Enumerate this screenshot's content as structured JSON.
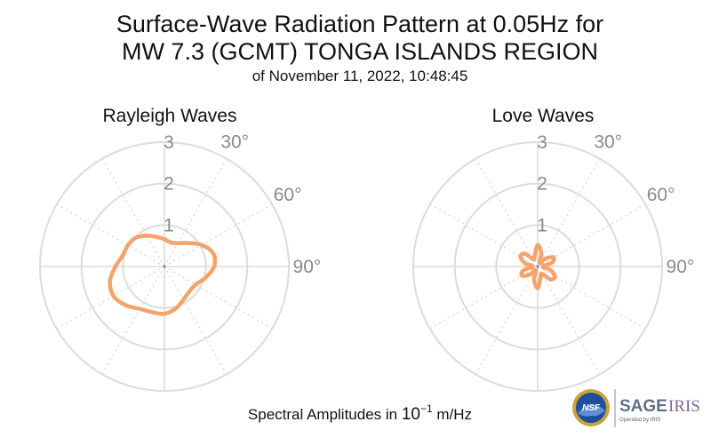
{
  "title_line1": "Surface-Wave Radiation Pattern at 0.05Hz for",
  "title_line2": "MW 7.3 (GCMT) TONGA ISLANDS REGION",
  "subtitle": "of November 11, 2022, 10:48:45",
  "footer_prefix": "Spectral Amplitudes in ",
  "footer_base": "10",
  "footer_exp": "−1",
  "footer_unit": " m/Hz",
  "logo": {
    "nsf": "NSF",
    "sage": "SAGE",
    "iris": "IRIS",
    "operated": "Operated by IRIS"
  },
  "colors": {
    "curve": "#f4a46b",
    "grid": "#dcdcdc",
    "label": "#8a8a8a"
  },
  "chart_data": [
    {
      "type": "polar-line",
      "title": "Rayleigh Waves",
      "r_ticks": [
        "1",
        "2",
        "3"
      ],
      "r_max": 3,
      "angle_ticks": [
        "30°",
        "60°",
        "90°"
      ],
      "theta_deg": [
        0,
        15,
        30,
        45,
        60,
        75,
        90,
        105,
        120,
        135,
        150,
        165,
        180,
        195,
        210,
        225,
        240,
        255,
        270,
        285,
        300,
        315,
        330,
        345
      ],
      "r": [
        0.66,
        0.6,
        0.65,
        0.8,
        1.04,
        1.22,
        1.2,
        1.03,
        0.87,
        0.85,
        0.92,
        1.05,
        1.14,
        1.14,
        1.18,
        1.32,
        1.42,
        1.36,
        1.18,
        1.04,
        1.02,
        0.98,
        0.86,
        0.74
      ]
    },
    {
      "type": "polar-line",
      "title": "Love Waves",
      "r_ticks": [
        "1",
        "2",
        "3"
      ],
      "r_max": 3,
      "angle_ticks": [
        "30°",
        "60°",
        "90°"
      ],
      "theta_deg": [
        0,
        15,
        30,
        45,
        60,
        75,
        90,
        105,
        120,
        135,
        150,
        165,
        180,
        195,
        210,
        225,
        240,
        255,
        270,
        285,
        300,
        315,
        330,
        345
      ],
      "r": [
        0.52,
        0.34,
        0.1,
        0.28,
        0.44,
        0.36,
        0.12,
        0.32,
        0.48,
        0.44,
        0.2,
        0.28,
        0.52,
        0.34,
        0.1,
        0.28,
        0.44,
        0.36,
        0.12,
        0.32,
        0.48,
        0.44,
        0.2,
        0.28
      ]
    }
  ]
}
